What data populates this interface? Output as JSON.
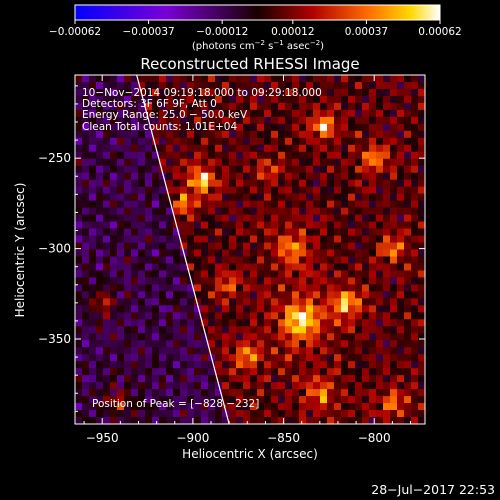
{
  "chart_data": {
    "type": "heatmap",
    "title": "Reconstructed RHESSI Image",
    "xlabel": "Heliocentric X (arcsec)",
    "ylabel": "Heliocentric Y (arcsec)",
    "xlim": [
      -965,
      -772
    ],
    "ylim": [
      -397,
      -204
    ],
    "x_ticks": [
      -950,
      -900,
      -850,
      -800
    ],
    "y_ticks": [
      -250,
      -300,
      -350
    ],
    "x_tick_labels": [
      "−950",
      "−900",
      "−850",
      "−800"
    ],
    "y_tick_labels": [
      "−250",
      "−300",
      "−350"
    ],
    "colorbar": {
      "min": -0.00062,
      "max": 0.00062,
      "tick_values": [
        -0.00062,
        -0.00037,
        -0.00012,
        0.00012,
        0.00037,
        0.00062
      ],
      "tick_labels": [
        "−0.00062",
        "−0.00037",
        "−0.00012",
        "0.00012",
        "0.00037",
        "0.00062"
      ],
      "unit_prefix": "(photons cm",
      "unit_sup1": "−2",
      "unit_mid1": " s",
      "unit_sup2": "−1",
      "unit_mid2": " asec",
      "unit_sup3": "−2",
      "unit_suffix": ")"
    },
    "annotations": [
      "10−Nov−2014 09:19:18.000 to 09:29:18.000",
      "Detectors: 3F 6F 9F, Att 0",
      "Energy Range: 25.0 − 50.0 keV",
      "Clean     Total counts: 1.01E+04"
    ],
    "peak_label": "Position of Peak = [−828,−232]",
    "peak": [
      -828,
      -232
    ],
    "limb_line": [
      [
        -931,
        -204
      ],
      [
        -880,
        -397
      ]
    ],
    "bright_regions": [
      {
        "x": -895,
        "y": -262,
        "w": 1.0,
        "r": 9
      },
      {
        "x": -905,
        "y": -275,
        "w": 0.7,
        "r": 7
      },
      {
        "x": -828,
        "y": -232,
        "w": 1.0,
        "r": 8
      },
      {
        "x": -845,
        "y": -300,
        "w": 0.6,
        "r": 14
      },
      {
        "x": -840,
        "y": -340,
        "w": 0.95,
        "r": 16
      },
      {
        "x": -815,
        "y": -330,
        "w": 0.8,
        "r": 10
      },
      {
        "x": -870,
        "y": -360,
        "w": 0.7,
        "r": 10
      },
      {
        "x": -800,
        "y": -250,
        "w": 0.6,
        "r": 10
      },
      {
        "x": -790,
        "y": -300,
        "w": 0.6,
        "r": 9
      },
      {
        "x": -950,
        "y": -330,
        "w": 0.55,
        "r": 9
      },
      {
        "x": -880,
        "y": -320,
        "w": 0.6,
        "r": 9
      },
      {
        "x": -830,
        "y": -380,
        "w": 0.6,
        "r": 12
      },
      {
        "x": -790,
        "y": -385,
        "w": 0.6,
        "r": 9
      },
      {
        "x": -940,
        "y": -385,
        "w": 0.5,
        "r": 9
      },
      {
        "x": -858,
        "y": -258,
        "w": 0.4,
        "r": 10
      }
    ]
  },
  "footer": {
    "timestamp": "28−Jul−2017 22:53"
  }
}
